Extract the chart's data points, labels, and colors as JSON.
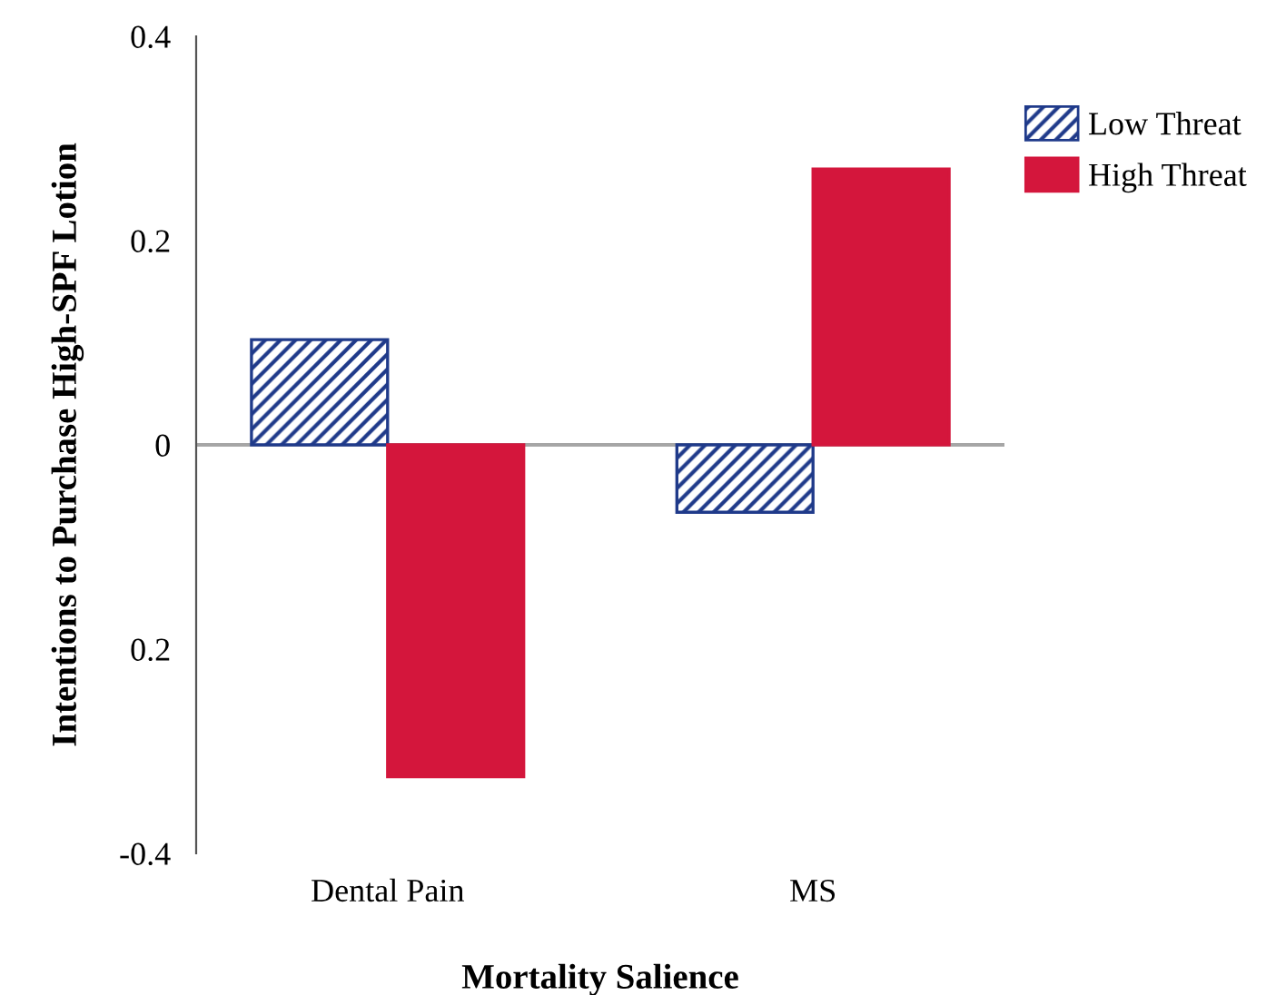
{
  "chart_data": {
    "type": "bar",
    "xlabel": "Mortality Salience",
    "ylabel": "Intentions to Purchase High-SPF Lotion",
    "categories": [
      "Dental Pain",
      "MS"
    ],
    "series": [
      {
        "name": "Low Threat",
        "color": "#1f3a8a",
        "values": [
          0.103,
          -0.066
        ]
      },
      {
        "name": "High Threat",
        "color": "#d4163c",
        "values": [
          -0.325,
          0.27
        ]
      }
    ],
    "ylim": [
      -0.4,
      0.4
    ],
    "yticks": [
      {
        "value": -0.4,
        "label": "-0.4"
      },
      {
        "value": -0.2,
        "label": "0.2"
      },
      0,
      0.2,
      0.4
    ],
    "ref_lines": [
      {
        "axis": "y",
        "value": 0,
        "color": "#a6a6a6"
      }
    ],
    "grid": false,
    "legend": "top right"
  }
}
